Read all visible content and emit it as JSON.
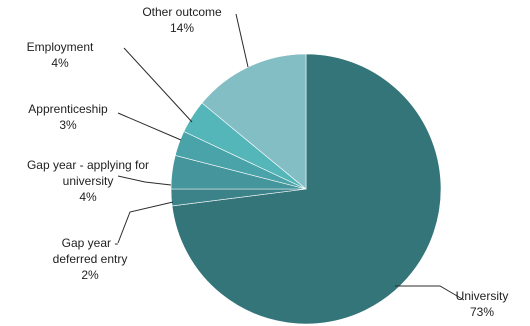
{
  "chart_data": {
    "type": "pie",
    "start_angle_deg": 0,
    "direction": "clockwise",
    "slices": [
      {
        "name": "University",
        "value": 73,
        "label_lines": [
          "University",
          "73%"
        ],
        "color": "#34757a"
      },
      {
        "name": "Gap year - deferred entry",
        "value": 2,
        "label_lines": [
          "Gap year -",
          "deferred entry",
          "2%"
        ],
        "color": "#3b8289"
      },
      {
        "name": "Gap year - applying for university",
        "value": 4,
        "label_lines": [
          "Gap year - applying for",
          "university",
          "4%"
        ],
        "color": "#44969c"
      },
      {
        "name": "Apprenticeship",
        "value": 3,
        "label_lines": [
          "Apprenticeship",
          "3%"
        ],
        "color": "#4aa3a8"
      },
      {
        "name": "Employment",
        "value": 4,
        "label_lines": [
          "Employment",
          "4%"
        ],
        "color": "#55b6b9"
      },
      {
        "name": "Other outcome",
        "value": 14,
        "label_lines": [
          "Other outcome",
          "14%"
        ],
        "color": "#84bec5"
      }
    ]
  }
}
